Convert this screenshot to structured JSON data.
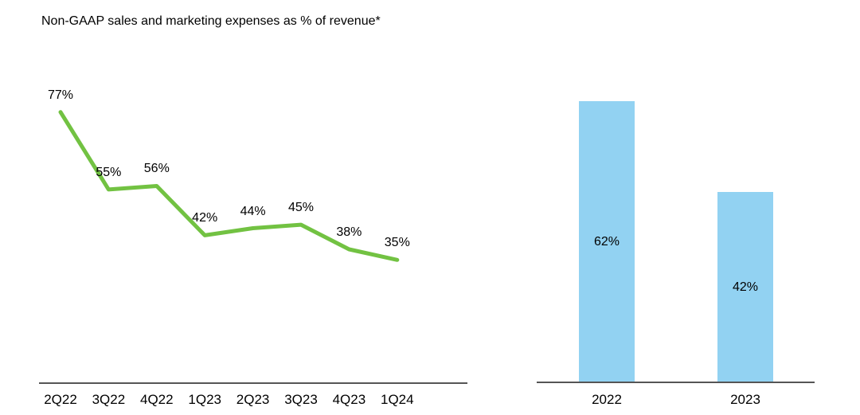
{
  "title": "Non-GAAP sales and marketing expenses as % of revenue*",
  "colors": {
    "line": "#72C242",
    "bar": "#92D2F2",
    "axis": "#555555",
    "text": "#000000"
  },
  "chart_data": [
    {
      "type": "line",
      "title": "Non-GAAP sales and marketing expenses as % of revenue*",
      "categories": [
        "2Q22",
        "3Q22",
        "4Q22",
        "1Q23",
        "2Q23",
        "3Q23",
        "4Q23",
        "1Q24"
      ],
      "values": [
        77,
        55,
        56,
        42,
        44,
        45,
        38,
        35
      ],
      "data_labels": [
        "77%",
        "55%",
        "56%",
        "42%",
        "44%",
        "45%",
        "38%",
        "35%"
      ],
      "unit": "%",
      "xlabel": "",
      "ylabel": "",
      "ylim": [
        0,
        85
      ],
      "grid": false,
      "legend": "none",
      "line_color": "#72C242",
      "label_position": "above-point"
    },
    {
      "type": "bar",
      "title": "",
      "categories": [
        "2022",
        "2023"
      ],
      "values": [
        62,
        42
      ],
      "data_labels": [
        "62%",
        "42%"
      ],
      "unit": "%",
      "xlabel": "",
      "ylabel": "",
      "ylim": [
        0,
        70
      ],
      "grid": false,
      "legend": "none",
      "bar_color": "#92D2F2",
      "label_position": "inside-center"
    }
  ]
}
